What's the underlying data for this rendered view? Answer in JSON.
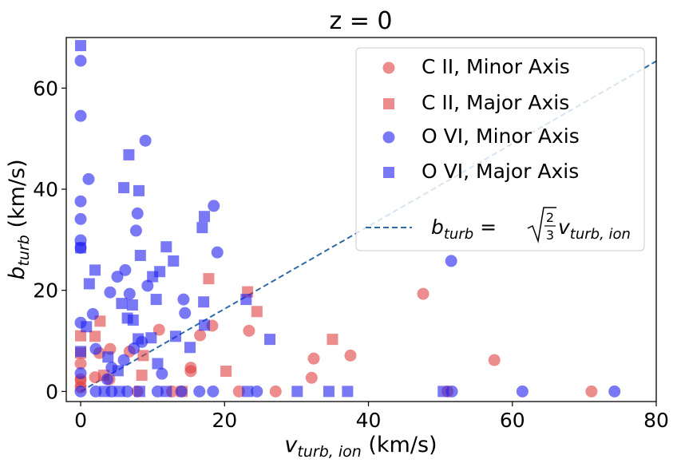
{
  "chart_data": {
    "type": "scatter",
    "title": "z = 0",
    "xlabel": {
      "main": "v",
      "sub": "turb, ion",
      "unit": " (km/s)"
    },
    "ylabel": {
      "main": "b",
      "sub": "turb",
      "unit": " (km/s)"
    },
    "xlim": [
      -2,
      80
    ],
    "ylim": [
      -2,
      70
    ],
    "xticks": [
      0,
      20,
      40,
      60,
      80
    ],
    "yticks": [
      0,
      20,
      40,
      60
    ],
    "alpha": 0.6,
    "legend": "upper right",
    "series": [
      {
        "name": "C II, Minor Axis",
        "color": "#e0403f",
        "marker": "circle",
        "x": [
          47.6,
          57.5,
          71,
          37.5,
          32.4,
          32.1,
          23.4,
          15.3,
          15.3,
          16.6,
          18.3,
          10.9,
          4.1,
          2.6,
          2,
          0,
          0,
          0,
          4,
          27.1,
          22,
          7.9,
          12.7,
          6.8,
          51
        ],
        "values": [
          19.3,
          6.2,
          0,
          7.1,
          6.5,
          2.7,
          12,
          4.7,
          4,
          11.1,
          13,
          12.2,
          8.4,
          7.6,
          2.8,
          2.4,
          5.5,
          0.8,
          2.4,
          0,
          0,
          0,
          0,
          7.9,
          0
        ]
      },
      {
        "name": "C II, Major Axis",
        "color": "#e0403f",
        "marker": "square",
        "x": [
          35,
          24.5,
          23.2,
          17.8,
          20.2,
          2.7,
          2,
          0,
          0,
          0,
          8.5,
          8.7,
          14.1,
          3.2
        ],
        "values": [
          10.3,
          15.8,
          19.7,
          22.3,
          4,
          13.9,
          10.9,
          11,
          7.6,
          1.9,
          3.2,
          7.1,
          0,
          3.2
        ]
      },
      {
        "name": "O VI, Minor Axis",
        "color": "#2020f0",
        "marker": "circle",
        "x": [
          0,
          0,
          1.1,
          9,
          0,
          0,
          0,
          0,
          18.5,
          7.9,
          7.7,
          19,
          51.5,
          6.2,
          5.1,
          9.3,
          4.1,
          6.8,
          14.3,
          1.7,
          14.5,
          0,
          2.1,
          7.4,
          8.5,
          11.3,
          4.3,
          6,
          0,
          3.7,
          0,
          10.7,
          14,
          16.5,
          18.4,
          24.5,
          51.6,
          61.4,
          74.2,
          4.3,
          6.5,
          2.1
        ],
        "values": [
          65.4,
          54.5,
          42,
          49.6,
          37.6,
          34.1,
          29.9,
          28.4,
          36.7,
          35.2,
          31.8,
          27.5,
          25.8,
          24,
          22.7,
          20.9,
          19.6,
          19.3,
          18.2,
          15.3,
          15.5,
          13.6,
          8.4,
          8.5,
          9.8,
          3.5,
          4.7,
          6.2,
          3.6,
          2.4,
          0,
          0,
          0,
          0,
          0,
          0,
          0,
          0,
          0,
          0,
          0,
          0
        ]
      },
      {
        "name": "O VI, Major Axis",
        "color": "#2020f0",
        "marker": "square",
        "x": [
          0,
          6.7,
          6,
          8.1,
          17.2,
          16.9,
          11.9,
          8.3,
          12.9,
          0,
          2,
          11,
          10,
          1.2,
          5.7,
          7.2,
          10.5,
          17.1,
          23,
          6.5,
          7.3,
          17.2,
          0.8,
          13.2,
          8,
          9.8,
          26.3,
          15.2,
          10.7,
          3.8,
          5.2,
          0,
          3.3,
          8.2,
          11.9,
          23.2,
          30.1,
          34.5,
          37.1,
          50.4,
          5.4
        ],
        "values": [
          68.4,
          46.8,
          40.3,
          39.7,
          34.6,
          32.4,
          28.6,
          26.9,
          25.8,
          28.4,
          24,
          23.7,
          22.7,
          21.3,
          17.4,
          17.1,
          18.2,
          17.7,
          18.2,
          14.5,
          14.1,
          13.1,
          12.8,
          10.9,
          10.4,
          10.6,
          10.3,
          8.7,
          5.5,
          6.8,
          4.1,
          7.9,
          0,
          0,
          0,
          0,
          0,
          0,
          0,
          0,
          0
        ]
      }
    ],
    "reference_line": {
      "x": [
        0,
        80
      ],
      "values": [
        0,
        65.32
      ],
      "color": "#2e6aa8",
      "style": "dashed",
      "label": {
        "lhs": "b",
        "lhs_sub": "turb",
        "eq": " = ",
        "num": "2",
        "den": "3",
        "rhs": "v",
        "rhs_sub": "turb, ion"
      }
    }
  }
}
